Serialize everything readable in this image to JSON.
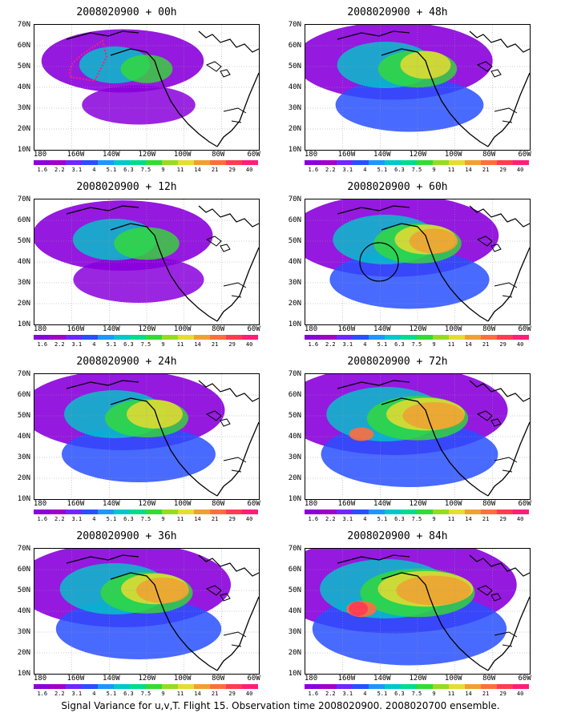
{
  "panels": [
    {
      "title": "2008020900 + 00h"
    },
    {
      "title": "2008020900 + 48h"
    },
    {
      "title": "2008020900 + 12h"
    },
    {
      "title": "2008020900 + 60h"
    },
    {
      "title": "2008020900 + 24h"
    },
    {
      "title": "2008020900 + 72h"
    },
    {
      "title": "2008020900 + 36h"
    },
    {
      "title": "2008020900 + 84h"
    }
  ],
  "lat_labels": [
    "70N",
    "60N",
    "50N",
    "40N",
    "30N",
    "20N",
    "10N"
  ],
  "lon_labels": [
    "180",
    "160W",
    "140W",
    "120W",
    "100W",
    "80W",
    "60W"
  ],
  "colorbar_labels": [
    "1.6",
    "2.2",
    "3.1",
    "4",
    "5.1",
    "6.3",
    "7.5",
    "9",
    "11",
    "14",
    "21",
    "29",
    "40"
  ],
  "colorbar_colors": [
    "#8a00dc",
    "#a000c8",
    "#6e28ff",
    "#2850ff",
    "#1e96ff",
    "#00c8c8",
    "#00dc8c",
    "#32dc32",
    "#96dc1e",
    "#e6dc32",
    "#f0a032",
    "#ff6e3c",
    "#ff3c50",
    "#ff1e78"
  ],
  "caption": "Signal Variance for u,v,T. Flight 15. Observation time 2008020900. 2008020700 ensemble."
}
